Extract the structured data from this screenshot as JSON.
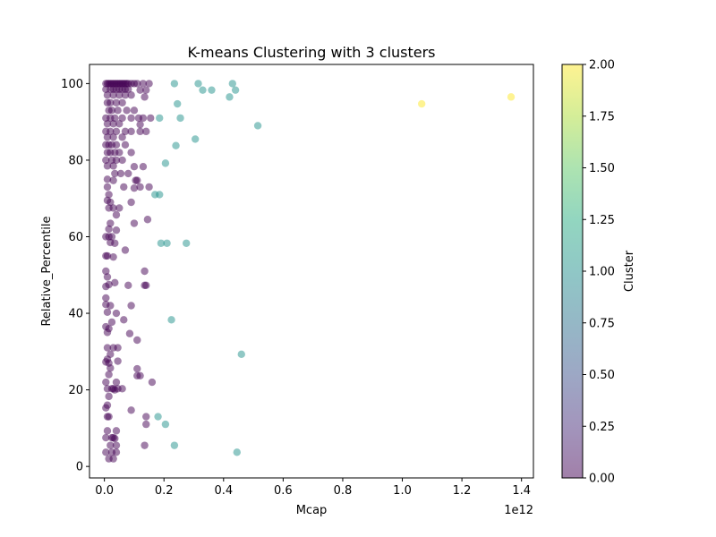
{
  "chart_data": {
    "type": "scatter",
    "title": "K-means Clustering with 3 clusters",
    "xlabel": "Mcap",
    "ylabel": "Relative_Percentile",
    "x_offset_label": "1e12",
    "x_scale": 1000000000000.0,
    "xlim": [
      -0.05,
      1.44
    ],
    "ylim": [
      -3,
      105
    ],
    "xticks": [
      0.0,
      0.2,
      0.4,
      0.6,
      0.8,
      1.0,
      1.2,
      1.4
    ],
    "xtick_labels": [
      "0.0",
      "0.2",
      "0.4",
      "0.6",
      "0.8",
      "1.0",
      "1.2",
      "1.4"
    ],
    "yticks": [
      0,
      20,
      40,
      60,
      80,
      100
    ],
    "ytick_labels": [
      "0",
      "20",
      "40",
      "60",
      "80",
      "100"
    ],
    "grid": false,
    "colorbar": {
      "label": "Cluster",
      "range": [
        0,
        2
      ],
      "ticks": [
        0.0,
        0.25,
        0.5,
        0.75,
        1.0,
        1.25,
        1.5,
        1.75,
        2.0
      ],
      "tick_labels": [
        "0.00",
        "0.25",
        "0.50",
        "0.75",
        "1.00",
        "1.25",
        "1.50",
        "1.75",
        "2.00"
      ],
      "colormap": "viridis",
      "alpha": 0.5
    },
    "clusters": [
      {
        "cluster": 0,
        "color": "#440154",
        "points": [
          [
            0.005,
            100
          ],
          [
            0.01,
            100
          ],
          [
            0.015,
            100
          ],
          [
            0.02,
            100
          ],
          [
            0.025,
            100
          ],
          [
            0.03,
            100
          ],
          [
            0.035,
            100
          ],
          [
            0.04,
            100
          ],
          [
            0.045,
            100
          ],
          [
            0.05,
            100
          ],
          [
            0.055,
            100
          ],
          [
            0.06,
            100
          ],
          [
            0.065,
            100
          ],
          [
            0.07,
            100
          ],
          [
            0.075,
            100
          ],
          [
            0.08,
            100
          ],
          [
            0.09,
            100
          ],
          [
            0.1,
            100
          ],
          [
            0.11,
            100
          ],
          [
            0.13,
            100
          ],
          [
            0.15,
            100
          ],
          [
            0.005,
            98.5
          ],
          [
            0.02,
            98.5
          ],
          [
            0.03,
            98.5
          ],
          [
            0.04,
            98.5
          ],
          [
            0.05,
            98.5
          ],
          [
            0.06,
            98.5
          ],
          [
            0.07,
            98.5
          ],
          [
            0.08,
            98.5
          ],
          [
            0.12,
            98.3
          ],
          [
            0.14,
            98.3
          ],
          [
            0.01,
            97
          ],
          [
            0.03,
            97
          ],
          [
            0.05,
            97
          ],
          [
            0.07,
            97
          ],
          [
            0.09,
            97
          ],
          [
            0.135,
            96.5
          ],
          [
            0.01,
            95
          ],
          [
            0.02,
            95
          ],
          [
            0.04,
            95
          ],
          [
            0.06,
            95
          ],
          [
            0.015,
            93
          ],
          [
            0.025,
            93
          ],
          [
            0.045,
            93
          ],
          [
            0.075,
            93
          ],
          [
            0.1,
            93
          ],
          [
            0.005,
            91
          ],
          [
            0.02,
            91
          ],
          [
            0.035,
            91
          ],
          [
            0.06,
            91
          ],
          [
            0.09,
            91
          ],
          [
            0.115,
            91
          ],
          [
            0.13,
            91
          ],
          [
            0.155,
            91
          ],
          [
            0.01,
            89.5
          ],
          [
            0.03,
            89.5
          ],
          [
            0.05,
            89.5
          ],
          [
            0.12,
            89.3
          ],
          [
            0.005,
            87.5
          ],
          [
            0.02,
            87.5
          ],
          [
            0.04,
            87.5
          ],
          [
            0.07,
            87.5
          ],
          [
            0.09,
            87.5
          ],
          [
            0.12,
            87.5
          ],
          [
            0.14,
            87.5
          ],
          [
            0.01,
            86
          ],
          [
            0.03,
            86
          ],
          [
            0.06,
            86
          ],
          [
            0.005,
            84
          ],
          [
            0.015,
            84
          ],
          [
            0.025,
            84
          ],
          [
            0.04,
            84
          ],
          [
            0.07,
            84
          ],
          [
            0.01,
            82
          ],
          [
            0.02,
            82
          ],
          [
            0.035,
            82
          ],
          [
            0.05,
            82
          ],
          [
            0.09,
            82
          ],
          [
            0.005,
            80
          ],
          [
            0.025,
            80
          ],
          [
            0.04,
            80
          ],
          [
            0.06,
            80
          ],
          [
            0.01,
            78.5
          ],
          [
            0.03,
            78.5
          ],
          [
            0.1,
            78.3
          ],
          [
            0.13,
            78.3
          ],
          [
            0.035,
            76.5
          ],
          [
            0.055,
            76.5
          ],
          [
            0.08,
            76.5
          ],
          [
            0.01,
            75
          ],
          [
            0.03,
            74.7
          ],
          [
            0.105,
            74.7
          ],
          [
            0.11,
            74.7
          ],
          [
            0.01,
            73
          ],
          [
            0.065,
            73
          ],
          [
            0.12,
            73
          ],
          [
            0.15,
            73
          ],
          [
            0.1,
            72.7
          ],
          [
            0.015,
            71
          ],
          [
            0.01,
            69.5
          ],
          [
            0.09,
            69
          ],
          [
            0.02,
            69
          ],
          [
            0.015,
            67.5
          ],
          [
            0.03,
            67.5
          ],
          [
            0.05,
            67.5
          ],
          [
            0.04,
            65.7
          ],
          [
            0.02,
            63.5
          ],
          [
            0.145,
            64.5
          ],
          [
            0.1,
            63.5
          ],
          [
            0.015,
            62
          ],
          [
            0.04,
            61.7
          ],
          [
            0.005,
            60
          ],
          [
            0.015,
            60
          ],
          [
            0.025,
            60
          ],
          [
            0.02,
            58.5
          ],
          [
            0.035,
            58.3
          ],
          [
            0.07,
            56.5
          ],
          [
            0.005,
            55
          ],
          [
            0.01,
            55
          ],
          [
            0.03,
            54.7
          ],
          [
            0.005,
            51
          ],
          [
            0.135,
            51
          ],
          [
            0.01,
            49.5
          ],
          [
            0.035,
            48
          ],
          [
            0.015,
            47.5
          ],
          [
            0.005,
            47
          ],
          [
            0.08,
            47.3
          ],
          [
            0.135,
            47.3
          ],
          [
            0.14,
            47.3
          ],
          [
            0.005,
            44
          ],
          [
            0.005,
            42.3
          ],
          [
            0.02,
            42
          ],
          [
            0.09,
            42
          ],
          [
            0.01,
            40.3
          ],
          [
            0.04,
            40
          ],
          [
            0.065,
            38.3
          ],
          [
            0.025,
            37.7
          ],
          [
            0.005,
            36.5
          ],
          [
            0.015,
            36
          ],
          [
            0.01,
            35
          ],
          [
            0.085,
            34.7
          ],
          [
            0.11,
            33
          ],
          [
            0.03,
            31
          ],
          [
            0.045,
            31
          ],
          [
            0.01,
            31
          ],
          [
            0.02,
            29.3
          ],
          [
            0.01,
            28
          ],
          [
            0.045,
            27.5
          ],
          [
            0.005,
            27.3
          ],
          [
            0.015,
            27
          ],
          [
            0.02,
            25.7
          ],
          [
            0.11,
            25.5
          ],
          [
            0.015,
            24
          ],
          [
            0.12,
            23.7
          ],
          [
            0.11,
            23.7
          ],
          [
            0.005,
            22
          ],
          [
            0.04,
            22
          ],
          [
            0.16,
            22
          ],
          [
            0.01,
            20.3
          ],
          [
            0.025,
            20.3
          ],
          [
            0.03,
            20.3
          ],
          [
            0.045,
            20.3
          ],
          [
            0.035,
            20
          ],
          [
            0.06,
            20.3
          ],
          [
            0.015,
            18.3
          ],
          [
            0.01,
            16
          ],
          [
            0.005,
            15.3
          ],
          [
            0.09,
            14.7
          ],
          [
            0.01,
            13
          ],
          [
            0.015,
            13
          ],
          [
            0.14,
            13
          ],
          [
            0.14,
            11
          ],
          [
            0.01,
            9.3
          ],
          [
            0.04,
            9.3
          ],
          [
            0.005,
            7.5
          ],
          [
            0.025,
            7.5
          ],
          [
            0.03,
            7.5
          ],
          [
            0.035,
            7.3
          ],
          [
            0.02,
            5.5
          ],
          [
            0.04,
            5.5
          ],
          [
            0.135,
            5.5
          ],
          [
            0.005,
            3.7
          ],
          [
            0.025,
            3.7
          ],
          [
            0.04,
            3.7
          ],
          [
            0.015,
            2
          ],
          [
            0.03,
            2
          ]
        ]
      },
      {
        "cluster": 1,
        "color": "#21918c",
        "points": [
          [
            0.235,
            100
          ],
          [
            0.315,
            100
          ],
          [
            0.43,
            100
          ],
          [
            0.33,
            98.3
          ],
          [
            0.36,
            98.3
          ],
          [
            0.44,
            98.3
          ],
          [
            0.42,
            96.5
          ],
          [
            0.245,
            94.7
          ],
          [
            0.255,
            91
          ],
          [
            0.185,
            91
          ],
          [
            0.515,
            89
          ],
          [
            0.305,
            85.5
          ],
          [
            0.24,
            83.8
          ],
          [
            0.205,
            79.2
          ],
          [
            0.17,
            71
          ],
          [
            0.185,
            71
          ],
          [
            0.19,
            58.3
          ],
          [
            0.21,
            58.3
          ],
          [
            0.275,
            58.3
          ],
          [
            0.225,
            38.3
          ],
          [
            0.46,
            29.3
          ],
          [
            0.18,
            13
          ],
          [
            0.205,
            11
          ],
          [
            0.235,
            5.5
          ],
          [
            0.445,
            3.7
          ]
        ]
      },
      {
        "cluster": 2,
        "color": "#fde725",
        "points": [
          [
            1.065,
            94.7
          ],
          [
            1.365,
            96.5
          ]
        ]
      }
    ]
  }
}
